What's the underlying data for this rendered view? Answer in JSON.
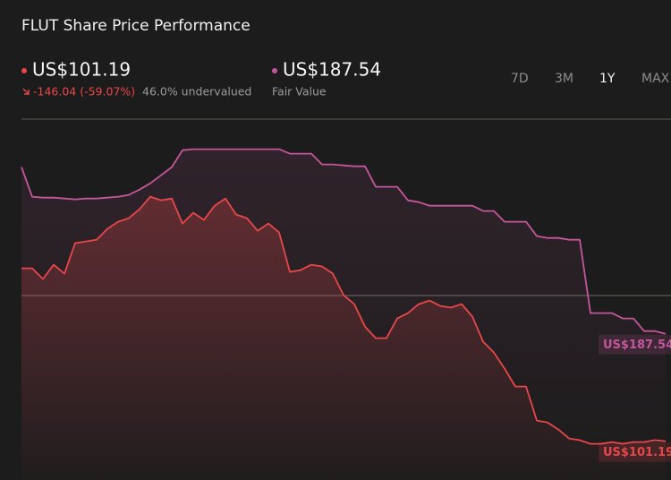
{
  "chart_data": {
    "type": "line",
    "title": "FLUT Share Price Performance",
    "price": {
      "value": "US$101.19",
      "change": "-146.04 (-59.07%)",
      "valuation": "46.0% undervalued"
    },
    "fair_value": {
      "value": "US$187.54",
      "label": "Fair Value"
    },
    "tabs": [
      "7D",
      "3M",
      "1Y",
      "MAX"
    ],
    "selected_tab": 2,
    "ylim": [
      70,
      360
    ],
    "series": [
      {
        "color": "#e8474a",
        "end_label": "US$101.19",
        "values": [
          240.1,
          240.1,
          231.5,
          243.0,
          235.8,
          260.3,
          261.7,
          263.1,
          271.8,
          277.5,
          280.4,
          287.6,
          297.7,
          294.8,
          296.2,
          276.1,
          284.7,
          279.0,
          290.5,
          296.2,
          283.3,
          280.4,
          270.3,
          276.1,
          268.9,
          237.2,
          238.7,
          243.0,
          241.6,
          235.8,
          218.5,
          211.3,
          193.3,
          184.0,
          184.0,
          199.8,
          204.1,
          211.3,
          214.2,
          209.9,
          208.5,
          211.3,
          201.3,
          181.1,
          172.5,
          159.5,
          145.1,
          145.1,
          117.8,
          116.3,
          110.6,
          103.4,
          102.0,
          99.1,
          99.1,
          100.5,
          99.1,
          100.5,
          100.5,
          102.0,
          101.19
        ]
      },
      {
        "color": "#c4579b",
        "end_label": "US$187.54",
        "values": [
          321.4,
          297.6,
          296.9,
          296.9,
          296.2,
          295.5,
          296.2,
          296.2,
          296.9,
          297.6,
          299.1,
          303.4,
          308.4,
          314.9,
          321.4,
          335.0,
          335.8,
          335.8,
          335.8,
          335.8,
          335.8,
          335.8,
          335.8,
          335.8,
          335.8,
          332.2,
          332.2,
          332.2,
          323.6,
          323.6,
          322.8,
          322.1,
          322.1,
          305.6,
          305.6,
          305.6,
          294.7,
          293.3,
          290.4,
          290.4,
          290.4,
          290.4,
          290.4,
          286.2,
          286.2,
          277.5,
          277.5,
          277.5,
          266.0,
          264.5,
          264.5,
          263.1,
          263.1,
          204.1,
          204.1,
          204.1,
          199.8,
          199.8,
          189.7,
          189.7,
          187.54
        ]
      }
    ]
  }
}
